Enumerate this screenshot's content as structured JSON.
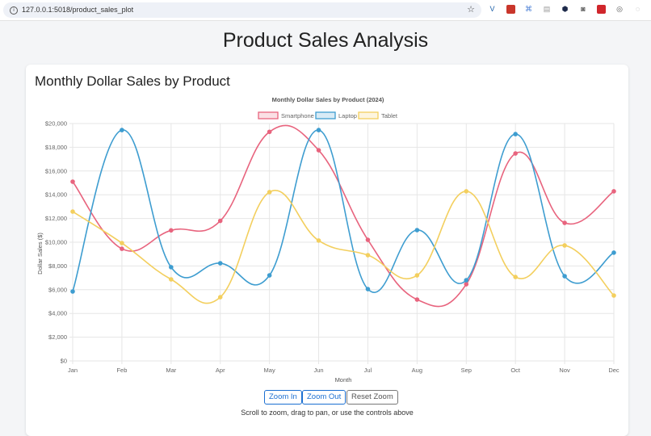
{
  "browser": {
    "url": "127.0.0.1:5018/product_sales_plot",
    "extensions": [
      "vimium-icon",
      "bookmark-icon",
      "translate-icon",
      "document-icon",
      "hexagon-icon",
      "camera-icon",
      "red-extension-icon",
      "chat-icon",
      "puzzle-icon",
      "panel-icon"
    ]
  },
  "page": {
    "title": "Product Sales Analysis",
    "card_title": "Monthly Dollar Sales by Product"
  },
  "controls": {
    "zoom_in": "Zoom In",
    "zoom_out": "Zoom Out",
    "reset_zoom": "Reset Zoom",
    "hint": "Scroll to zoom, drag to pan, or use the controls above"
  },
  "chart_data": {
    "type": "line",
    "title": "Monthly Dollar Sales by Product (2024)",
    "xlabel": "Month",
    "ylabel": "Dollar Sales ($)",
    "categories": [
      "Jan",
      "Feb",
      "Mar",
      "Apr",
      "May",
      "Jun",
      "Jul",
      "Aug",
      "Sep",
      "Oct",
      "Nov",
      "Dec"
    ],
    "ylim": [
      0,
      20000
    ],
    "yticks": [
      "$0",
      "$2,000",
      "$4,000",
      "$6,000",
      "$8,000",
      "$10,000",
      "$12,000",
      "$14,000",
      "$16,000",
      "$18,000",
      "$20,000"
    ],
    "grid": true,
    "legend_position": "top",
    "series": [
      {
        "name": "Smartphone",
        "color": "#e8647e",
        "values": [
          15100,
          9450,
          11000,
          11800,
          19300,
          17750,
          10200,
          5170,
          6460,
          17480,
          11630,
          14290
        ]
      },
      {
        "name": "Laptop",
        "color": "#3e9dd0",
        "values": [
          5850,
          19450,
          7900,
          8230,
          7210,
          19450,
          6050,
          11020,
          6800,
          19110,
          7140,
          9120
        ]
      },
      {
        "name": "Tablet",
        "color": "#f3cf5e",
        "values": [
          12580,
          9930,
          6870,
          5370,
          14220,
          10140,
          8910,
          7210,
          14290,
          7070,
          9730,
          5510
        ]
      }
    ]
  }
}
